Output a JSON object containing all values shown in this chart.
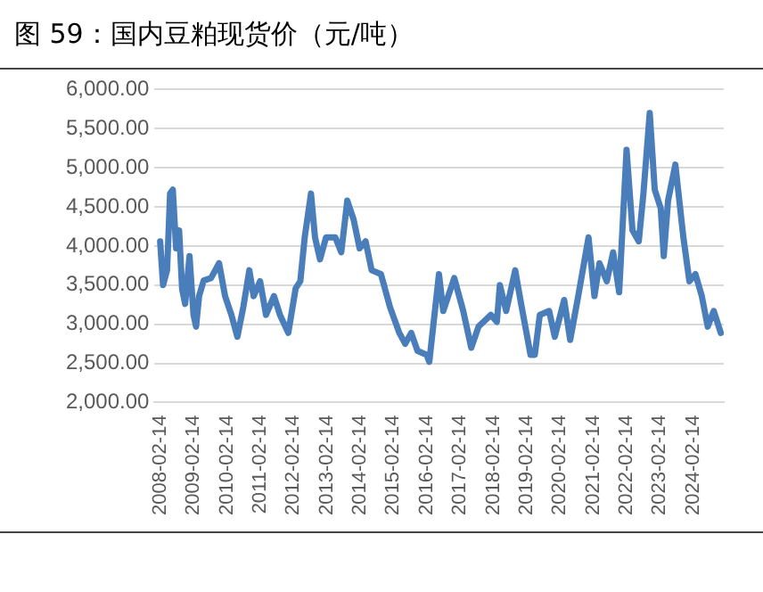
{
  "chart_data": {
    "type": "line",
    "title": "图 59：国内豆粕现货价（元/吨）",
    "x": [
      "2008-02-14",
      "2008-03-17",
      "2008-04-30",
      "2008-06-02",
      "2008-07-02",
      "2008-08-07",
      "2008-09-09",
      "2008-10-12",
      "2008-11-14",
      "2009-01-01",
      "2009-02-14",
      "2009-03-14",
      "2009-04-16",
      "2009-06-06",
      "2009-08-25",
      "2009-11-21",
      "2010-01-26",
      "2010-04-05",
      "2010-06-10",
      "2010-08-14",
      "2010-10-19",
      "2010-12-05",
      "2011-02-14",
      "2011-04-20",
      "2011-07-16",
      "2011-09-20",
      "2011-12-20",
      "2012-03-10",
      "2012-04-30",
      "2012-06-17",
      "2012-08-25",
      "2012-10-08",
      "2012-12-02",
      "2013-02-06",
      "2013-05-19",
      "2013-07-23",
      "2013-09-27",
      "2013-12-05",
      "2014-02-09",
      "2014-04-16",
      "2014-06-21",
      "2014-10-01",
      "2015-01-08",
      "2015-04-20",
      "2015-06-24",
      "2015-08-29",
      "2015-11-06",
      "2016-02-14",
      "2016-03-14",
      "2016-06-28",
      "2016-08-14",
      "2016-12-13",
      "2017-03-21",
      "2017-06-17",
      "2017-09-05",
      "2018-01-19",
      "2018-03-25",
      "2018-04-27",
      "2018-07-05",
      "2018-10-12",
      "2018-12-16",
      "2019-03-29",
      "2019-05-15",
      "2019-07-09",
      "2019-10-19",
      "2019-12-20",
      "2020-04-01",
      "2020-06-06",
      "2020-09-02",
      "2020-12-24",
      "2021-02-27",
      "2021-04-23",
      "2021-07-12",
      "2021-09-20",
      "2021-11-25",
      "2022-02-14",
      "2022-04-20",
      "2022-06-28",
      "2022-08-18",
      "2022-10-26",
      "2022-12-20",
      "2023-02-24",
      "2023-03-29",
      "2023-05-15",
      "2023-08-03",
      "2023-10-30",
      "2024-01-04",
      "2024-03-10",
      "2024-05-19",
      "2024-07-23",
      "2024-09-27",
      "2024-12-13"
    ],
    "values": [
      4060,
      3500,
      3690,
      4670,
      4720,
      3970,
      4200,
      3450,
      3260,
      3870,
      3120,
      2970,
      3360,
      3560,
      3590,
      3780,
      3360,
      3120,
      2840,
      3220,
      3690,
      3360,
      3550,
      3120,
      3360,
      3120,
      2890,
      3460,
      3550,
      4110,
      4670,
      4110,
      3830,
      4110,
      4110,
      3920,
      4580,
      4340,
      3970,
      4060,
      3690,
      3640,
      3220,
      2890,
      2750,
      2890,
      2660,
      2610,
      2520,
      3640,
      3170,
      3590,
      3170,
      2700,
      2970,
      3120,
      3030,
      3500,
      3170,
      3690,
      3260,
      2610,
      2610,
      3120,
      3170,
      2840,
      3310,
      2800,
      3360,
      4110,
      3360,
      3780,
      3550,
      3920,
      3410,
      5230,
      4200,
      4060,
      4670,
      5700,
      4720,
      4480,
      3870,
      4580,
      5040,
      4110,
      3550,
      3640,
      3360,
      2970,
      3170,
      2890
    ],
    "color": "#4a7ebb",
    "line_style": "solid",
    "marker": "none",
    "xlim": [
      "2007-12-15",
      "2025-01-15"
    ],
    "xticks": [
      "2008-02-14",
      "2009-02-14",
      "2010-02-14",
      "2011-02-14",
      "2012-02-14",
      "2013-02-14",
      "2014-02-14",
      "2015-02-14",
      "2016-02-14",
      "2017-02-14",
      "2018-02-14",
      "2019-02-14",
      "2020-02-14",
      "2021-02-14",
      "2022-02-14",
      "2023-02-14",
      "2024-02-14"
    ],
    "ylim": [
      2000,
      6000
    ],
    "yticks": [
      {
        "value": 2000,
        "label": "2,000.00"
      },
      {
        "value": 2500,
        "label": "2,500.00"
      },
      {
        "value": 3000,
        "label": "3,000.00"
      },
      {
        "value": 3500,
        "label": "3,500.00"
      },
      {
        "value": 4000,
        "label": "4,000.00"
      },
      {
        "value": 4500,
        "label": "4,500.00"
      },
      {
        "value": 5000,
        "label": "5,000.00"
      },
      {
        "value": 5500,
        "label": "5,500.00"
      },
      {
        "value": 6000,
        "label": "6,000.00"
      }
    ],
    "grid": "y",
    "legend": false
  }
}
